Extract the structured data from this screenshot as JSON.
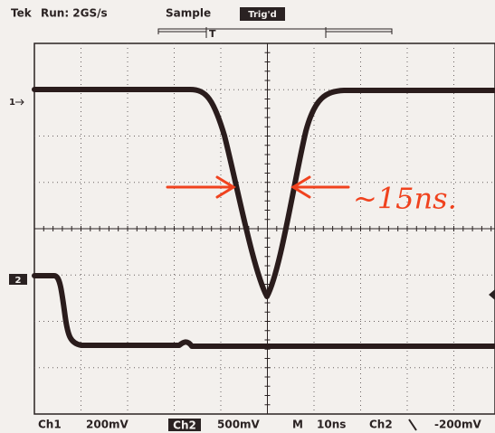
{
  "header": {
    "brand": "Tek",
    "status": "Run: 2GS/s",
    "mode": "Sample",
    "trigger_state": "Trig'd"
  },
  "markers": {
    "ch1": "1",
    "ch2": "2",
    "trigger": "T"
  },
  "annotation": "~15ns.",
  "footer": {
    "ch1": "Ch1",
    "ch1_scale": "200mV",
    "ch2": "Ch2",
    "ch2_scale": "500mV",
    "timebase_label": "M",
    "timebase": "10ns",
    "trigger_source": "Ch2",
    "trigger_level": "-200mV"
  }
}
